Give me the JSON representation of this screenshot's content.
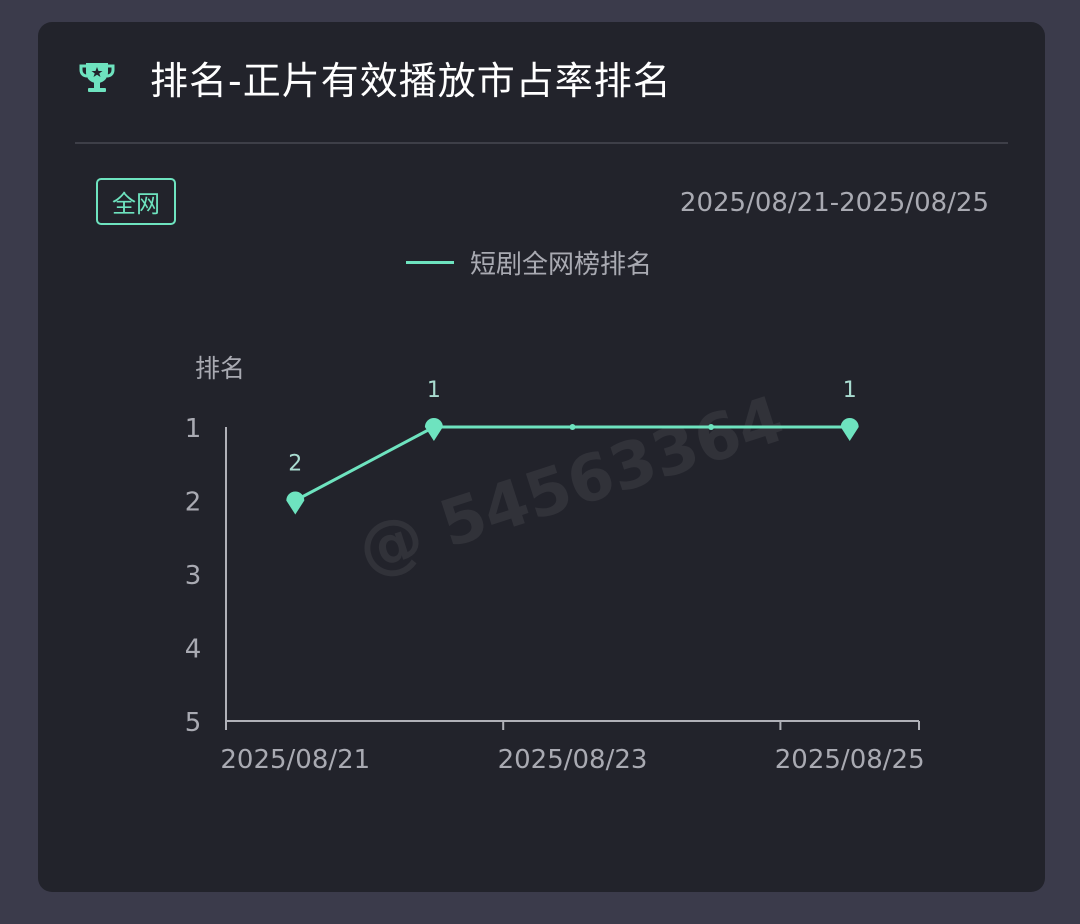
{
  "card": {
    "title": "排名-正片有效播放市占率排名",
    "icon": "trophy-icon",
    "tag": "全网",
    "date_range": "2025/08/21-2025/08/25",
    "watermark": "@ 54563364"
  },
  "colors": {
    "accent": "#6ee3bf",
    "card_bg": "#22232b",
    "page_bg": "#3b3b4b"
  },
  "chart_data": {
    "type": "line",
    "categories": [
      "2025/08/21",
      "2025/08/22",
      "2025/08/23",
      "2025/08/24",
      "2025/08/25"
    ],
    "x_tick_labels": [
      "2025/08/21",
      "2025/08/23",
      "2025/08/25"
    ],
    "series": [
      {
        "name": "短剧全网榜排名",
        "values": [
          2,
          1,
          1,
          1,
          1
        ]
      }
    ],
    "data_labels": [
      "2",
      "1",
      "",
      "",
      "1"
    ],
    "ylabel": "排名",
    "y_ticks": [
      "1",
      "2",
      "3",
      "4",
      "5"
    ],
    "ylim": [
      1,
      5
    ],
    "y_inverted": true,
    "grid": false,
    "legend": "top-center"
  }
}
